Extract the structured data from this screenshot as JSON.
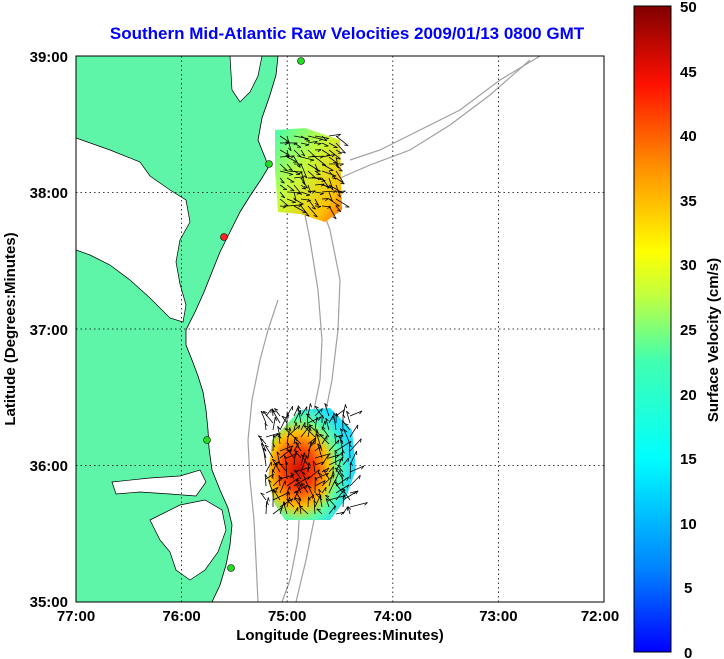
{
  "title": "Southern Mid-Atlantic Raw Velocities 2009/01/13 0800 GMT",
  "xlabel": "Longitude (Degrees:Minutes)",
  "ylabel": "Latitude (Degrees:Minutes)",
  "colorbar_label": "Surface Velocity (cm/s)",
  "x_ticks": [
    "77:00",
    "76:00",
    "75:00",
    "74:00",
    "73:00",
    "72:00"
  ],
  "y_ticks": [
    "39:00",
    "38:00",
    "37:00",
    "36:00",
    "35:00"
  ],
  "colorbar_ticks": [
    "50",
    "45",
    "40",
    "35",
    "30",
    "25",
    "20",
    "15",
    "10",
    "5",
    "0"
  ],
  "colors": {
    "land": "#5ef5a8",
    "title": "#0000ff",
    "bathymetry": "#a0a0a0",
    "station_active": "#22dd22",
    "station_offline": "#ff2222"
  },
  "map": {
    "lon_range": [
      -77,
      -72
    ],
    "lat_range": [
      35,
      39
    ],
    "grid": "dotted",
    "stations": [
      {
        "lon": -74.9,
        "lat": 38.99,
        "status": "active"
      },
      {
        "lon": -75.15,
        "lat": 38.22,
        "status": "active"
      },
      {
        "lon": -75.58,
        "lat": 37.67,
        "status": "offline"
      },
      {
        "lon": -75.73,
        "lat": 36.18,
        "status": "active"
      },
      {
        "lon": -75.53,
        "lat": 35.25,
        "status": "active"
      }
    ]
  }
}
